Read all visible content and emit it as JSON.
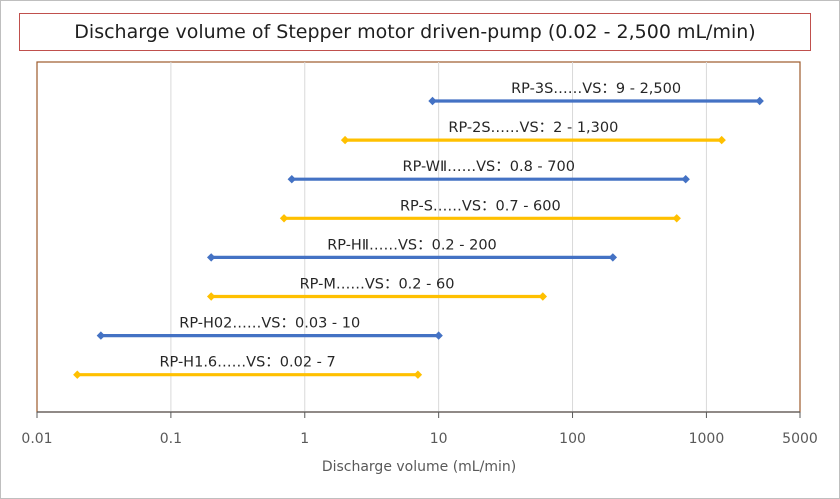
{
  "chart_data": {
    "type": "range-bar",
    "title": "Discharge volume of Stepper motor driven-pump (0.02 - 2,500 mL/min)",
    "xlabel": "Discharge volume (mL/min)",
    "ylabel": "",
    "x_scale": "log",
    "xlim": [
      0.01,
      5000
    ],
    "x_ticks": [
      0.01,
      0.1,
      1,
      10,
      100,
      1000,
      5000
    ],
    "x_tick_labels": [
      "0.01",
      "0.1",
      "1",
      "10",
      "100",
      "1000",
      "5000"
    ],
    "grid": "vertical",
    "colors": {
      "blue": "#4472c4",
      "gold": "#ffc000",
      "plot_border": "#9c5a2b"
    },
    "series": [
      {
        "label": "RP-3S……VS：9 - 2,500",
        "min": 9,
        "max": 2500,
        "color": "#4472c4"
      },
      {
        "label": "RP-2S……VS：2 - 1,300",
        "min": 2,
        "max": 1300,
        "color": "#ffc000"
      },
      {
        "label": "RP-WⅡ……VS：0.8 - 700",
        "min": 0.8,
        "max": 700,
        "color": "#4472c4"
      },
      {
        "label": "RP-S……VS：0.7 - 600",
        "min": 0.7,
        "max": 600,
        "color": "#ffc000"
      },
      {
        "label": "RP-HⅡ……VS：0.2 - 200",
        "min": 0.2,
        "max": 200,
        "color": "#4472c4"
      },
      {
        "label": "RP-M……VS：0.2 - 60",
        "min": 0.2,
        "max": 60,
        "color": "#ffc000"
      },
      {
        "label": "RP-H02……VS：0.03 - 10",
        "min": 0.03,
        "max": 10,
        "color": "#4472c4"
      },
      {
        "label": "RP-H1.6……VS：0.02 - 7",
        "min": 0.02,
        "max": 7,
        "color": "#ffc000"
      }
    ]
  }
}
